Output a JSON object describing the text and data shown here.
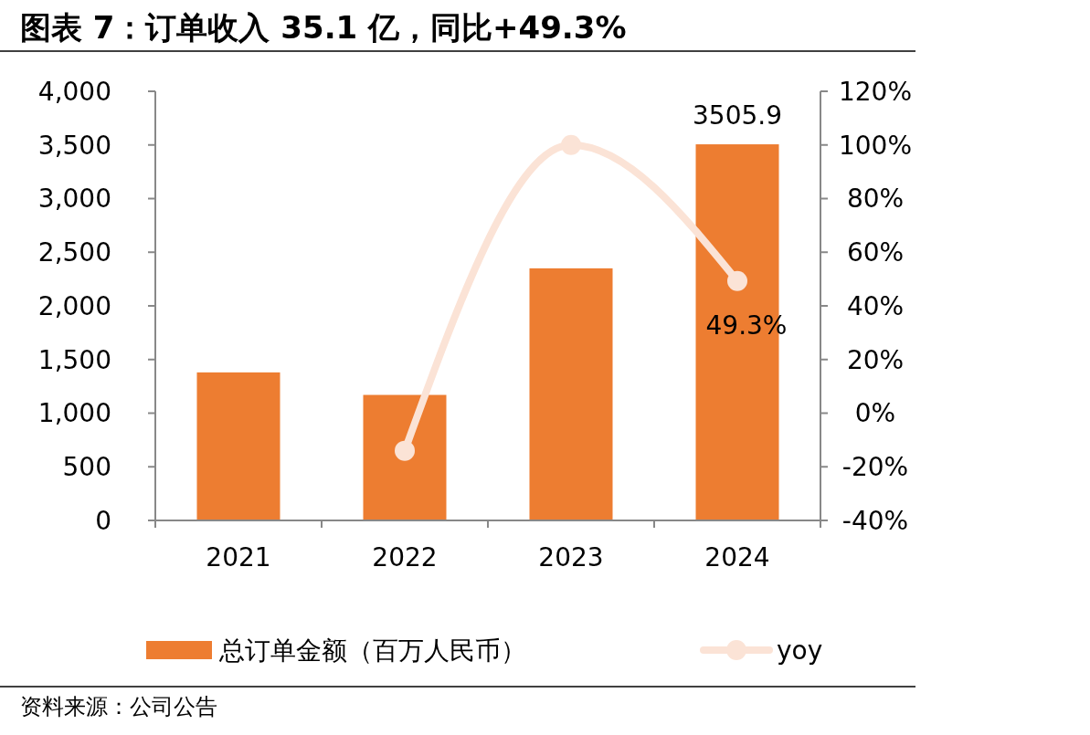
{
  "chart_data": {
    "type": "bar",
    "title": "图表 7：订单收入 35.1 亿，同比+49.3%",
    "categories": [
      "2021",
      "2022",
      "2023",
      "2024"
    ],
    "series": [
      {
        "name": "总订单金额（百万人民币）",
        "color": "#ed7d31",
        "values": [
          1380,
          1170,
          2350,
          3505.9
        ],
        "value_labels": [
          null,
          null,
          null,
          "3505.9"
        ]
      },
      {
        "name": "yoy",
        "type": "line",
        "axis": "y2",
        "color": "#fbe3d6",
        "marker": "circle",
        "values": [
          null,
          -14,
          100,
          49.3
        ],
        "value_labels": [
          null,
          null,
          null,
          "49.3%"
        ]
      }
    ],
    "ylim": [
      0,
      4000
    ],
    "yticks": [
      0,
      500,
      {
        "value": 1000,
        "label": "1,000"
      },
      {
        "value": 1500,
        "label": "1,500"
      },
      {
        "value": 2000,
        "label": "2,000"
      },
      {
        "value": 2500,
        "label": "2,500"
      },
      {
        "value": 3000,
        "label": "3,000"
      },
      {
        "value": 3500,
        "label": "3,500"
      },
      {
        "value": 4000,
        "label": "4,000"
      }
    ],
    "y2lim": [
      -40,
      120
    ],
    "y2ticks": [
      {
        "value": -40,
        "label": "-40%"
      },
      {
        "value": -20,
        "label": "-20%"
      },
      {
        "value": 0,
        "label": "0%"
      },
      {
        "value": 20,
        "label": "20%"
      },
      {
        "value": 40,
        "label": "40%"
      },
      {
        "value": 60,
        "label": "60%"
      },
      {
        "value": 80,
        "label": "80%"
      },
      {
        "value": 100,
        "label": "100%"
      },
      {
        "value": 120,
        "label": "120%"
      }
    ],
    "grid": false,
    "legend": "bottom",
    "annotations": [
      "资料来源：公司公告"
    ]
  }
}
